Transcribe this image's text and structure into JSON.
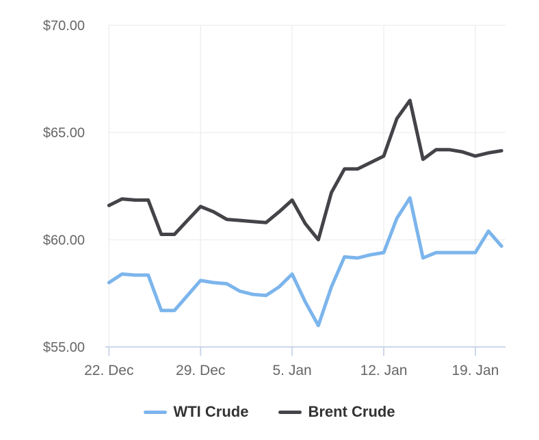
{
  "chart_data": {
    "type": "line",
    "title": "",
    "x": [
      "Dec 22",
      "Dec 23",
      "Dec 24",
      "Dec 25",
      "Dec 26",
      "Dec 27",
      "Dec 28",
      "Dec 29",
      "Dec 30",
      "Dec 31",
      "Jan 1",
      "Jan 2",
      "Jan 3",
      "Jan 4",
      "Jan 5",
      "Jan 6",
      "Jan 7",
      "Jan 8",
      "Jan 9",
      "Jan 10",
      "Jan 11",
      "Jan 12",
      "Jan 13",
      "Jan 14",
      "Jan 15",
      "Jan 16",
      "Jan 17",
      "Jan 18",
      "Jan 19",
      "Jan 20",
      "Jan 21"
    ],
    "x_tick_labels": [
      "22. Dec",
      "29. Dec",
      "5. Jan",
      "12. Jan",
      "19. Jan"
    ],
    "x_tick_indices": [
      0,
      7,
      14,
      21,
      28
    ],
    "y_tick_labels": [
      "$55.00",
      "$60.00",
      "$65.00",
      "$70.00"
    ],
    "y_tick_values": [
      55,
      60,
      65,
      70
    ],
    "ylim": [
      55,
      70
    ],
    "grid": true,
    "legend_position": "bottom",
    "series": [
      {
        "name": "WTI Crude",
        "color": "#7cb5ec",
        "values": [
          58.0,
          58.4,
          58.35,
          58.35,
          56.7,
          56.7,
          57.4,
          58.1,
          58.0,
          57.95,
          57.6,
          57.45,
          57.4,
          57.8,
          58.4,
          57.1,
          56.0,
          57.8,
          59.2,
          59.15,
          59.3,
          59.4,
          61.0,
          61.95,
          59.15,
          59.4,
          59.4,
          59.4,
          59.4,
          60.4,
          59.7
        ]
      },
      {
        "name": "Brent Crude",
        "color": "#434348",
        "values": [
          61.6,
          61.9,
          61.85,
          61.85,
          60.25,
          60.25,
          60.9,
          61.55,
          61.3,
          60.95,
          60.9,
          60.85,
          60.8,
          61.3,
          61.85,
          60.75,
          60.0,
          62.2,
          63.3,
          63.3,
          63.6,
          63.9,
          65.65,
          66.5,
          63.75,
          64.2,
          64.2,
          64.1,
          63.9,
          64.05,
          64.15
        ]
      }
    ]
  },
  "colors": {
    "background": "#ffffff",
    "grid_line": "#f0f0f0",
    "axis_line": "#ccd6eb",
    "tick_mark": "#ccd6eb",
    "axis_label_text": "#666666",
    "legend_text": "#333333"
  }
}
